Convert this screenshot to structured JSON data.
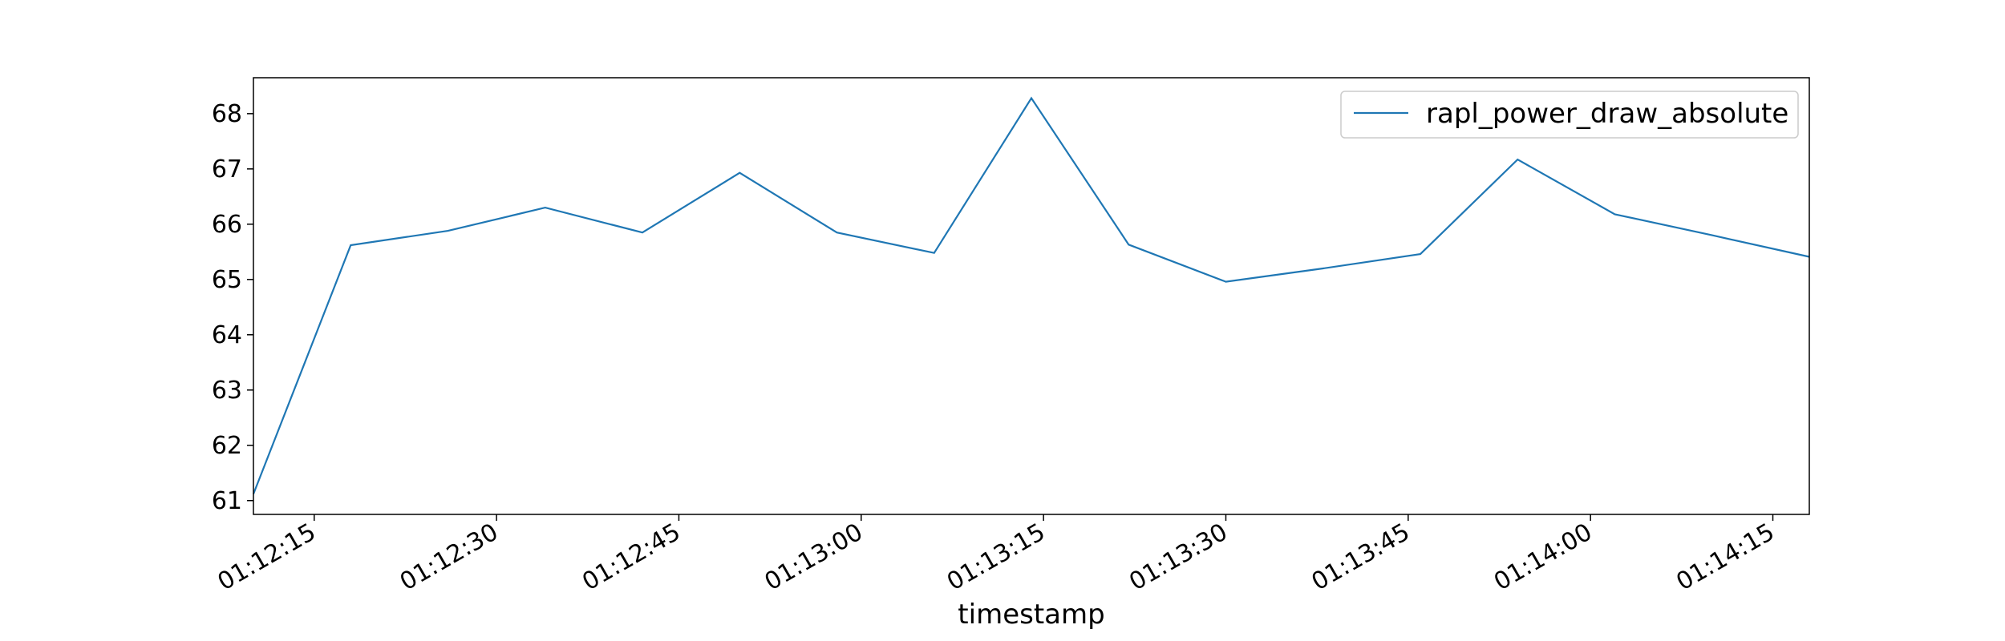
{
  "chart_data": {
    "type": "line",
    "xlabel": "timestamp",
    "ylabel": "",
    "x": [
      "01:12:10",
      "01:12:18",
      "01:12:26",
      "01:12:34",
      "01:12:42",
      "01:12:50",
      "01:12:58",
      "01:13:06",
      "01:13:14",
      "01:13:22",
      "01:13:30",
      "01:13:38",
      "01:13:46",
      "01:13:54",
      "01:14:02",
      "01:14:10",
      "01:14:18"
    ],
    "series": [
      {
        "name": "rapl_power_draw_absolute",
        "color": "#1f77b4",
        "values": [
          61.12,
          65.62,
          65.88,
          66.3,
          65.85,
          66.93,
          65.85,
          65.48,
          68.28,
          65.63,
          64.96,
          65.2,
          65.46,
          67.17,
          66.18,
          65.8,
          65.41
        ]
      }
    ],
    "xlim": [
      "01:12:10",
      "01:14:18"
    ],
    "ylim": [
      60.75,
      68.65
    ],
    "x_ticks": [
      "01:12:15",
      "01:12:30",
      "01:12:45",
      "01:13:00",
      "01:13:15",
      "01:13:30",
      "01:13:45",
      "01:14:00",
      "01:14:15"
    ],
    "y_ticks": [
      61,
      62,
      63,
      64,
      65,
      66,
      67,
      68
    ],
    "grid": false,
    "legend_position": "upper right"
  }
}
